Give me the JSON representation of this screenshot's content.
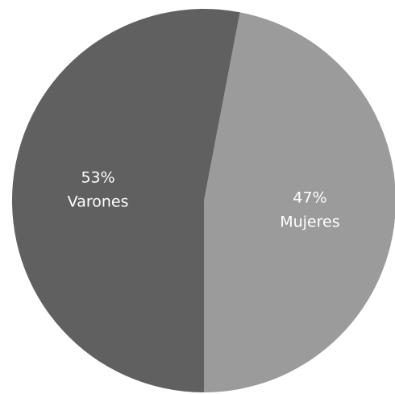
{
  "chart_data": {
    "type": "pie",
    "slices": [
      {
        "label": "Mujeres",
        "value": 47,
        "display_value": "47%",
        "color": "#9b9b9b"
      },
      {
        "label": "Varones",
        "value": 53,
        "display_value": "53%",
        "color": "#606060"
      }
    ],
    "title": "",
    "legend": "none (labels inside slices)"
  }
}
